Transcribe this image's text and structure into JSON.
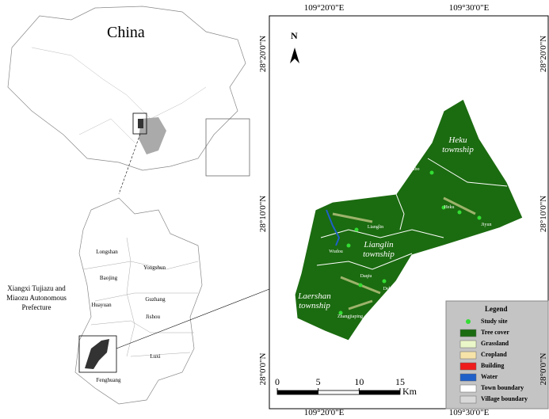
{
  "inset": {
    "title": "China",
    "prefecture_label": "Xiangxi Tujiazu and Miaozu Autonomous Prefecture",
    "counties": [
      "Longshan",
      "Yongshun",
      "Baojing",
      "Guzhang",
      "Huayuan",
      "Jishou",
      "Luxi",
      "Fenghuang"
    ]
  },
  "map": {
    "lon_labels": [
      "109°20'0\"E",
      "109°30'0\"E"
    ],
    "lat_labels": [
      "28°20'0\"N",
      "28°10'0\"N",
      "28°0'0\"N"
    ],
    "north": "N",
    "townships": [
      "Heku township",
      "Lianglin township",
      "Laershan township"
    ],
    "villages": [
      "Huibo",
      "Heku",
      "Jiyun",
      "Lianglin",
      "Wudou",
      "Daqiu",
      "Dehe",
      "Zhangjiaping"
    ],
    "legend": {
      "title": "Legend",
      "items": [
        {
          "label": "Study site",
          "color": "#33dd33",
          "symbol": "point"
        },
        {
          "label": "Tree cover",
          "color": "#1b6b10"
        },
        {
          "label": "Grassland",
          "color": "#eaf7c8"
        },
        {
          "label": "Cropland",
          "color": "#f5e3a8"
        },
        {
          "label": "Building",
          "color": "#ee1c1c"
        },
        {
          "label": "Water",
          "color": "#1f5fc8"
        },
        {
          "label": "Town boundary",
          "color": "#ffffff"
        },
        {
          "label": "Village boundary",
          "color": "#d9d9d9"
        }
      ]
    },
    "scale": {
      "ticks": [
        0,
        5,
        10,
        15
      ],
      "unit": "Km"
    }
  }
}
